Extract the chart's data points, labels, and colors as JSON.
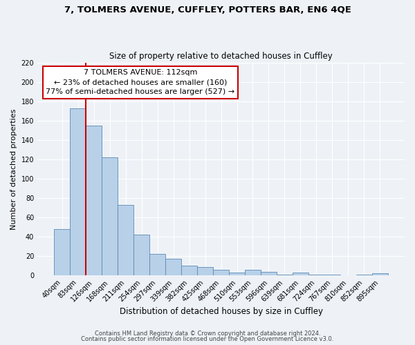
{
  "title_line1": "7, TOLMERS AVENUE, CUFFLEY, POTTERS BAR, EN6 4QE",
  "title_line2": "Size of property relative to detached houses in Cuffley",
  "xlabel": "Distribution of detached houses by size in Cuffley",
  "ylabel": "Number of detached properties",
  "bar_labels": [
    "40sqm",
    "83sqm",
    "126sqm",
    "168sqm",
    "211sqm",
    "254sqm",
    "297sqm",
    "339sqm",
    "382sqm",
    "425sqm",
    "468sqm",
    "510sqm",
    "553sqm",
    "596sqm",
    "639sqm",
    "681sqm",
    "724sqm",
    "767sqm",
    "810sqm",
    "852sqm",
    "895sqm"
  ],
  "bar_values": [
    48,
    173,
    155,
    122,
    73,
    42,
    22,
    17,
    10,
    9,
    6,
    3,
    6,
    4,
    1,
    3,
    1,
    1,
    0,
    1,
    2
  ],
  "bar_color": "#b8d0e8",
  "bar_edge_color": "#5a8ab5",
  "vline_color": "#cc0000",
  "annotation_title": "7 TOLMERS AVENUE: 112sqm",
  "annotation_line1": "← 23% of detached houses are smaller (160)",
  "annotation_line2": "77% of semi-detached houses are larger (527) →",
  "annotation_box_edge": "#cc0000",
  "ylim": [
    0,
    220
  ],
  "yticks": [
    0,
    20,
    40,
    60,
    80,
    100,
    120,
    140,
    160,
    180,
    200,
    220
  ],
  "footer_line1": "Contains HM Land Registry data © Crown copyright and database right 2024.",
  "footer_line2": "Contains public sector information licensed under the Open Government Licence v3.0.",
  "bg_color": "#eef2f7",
  "plot_bg_color": "#eef2f7",
  "grid_color": "#ffffff"
}
